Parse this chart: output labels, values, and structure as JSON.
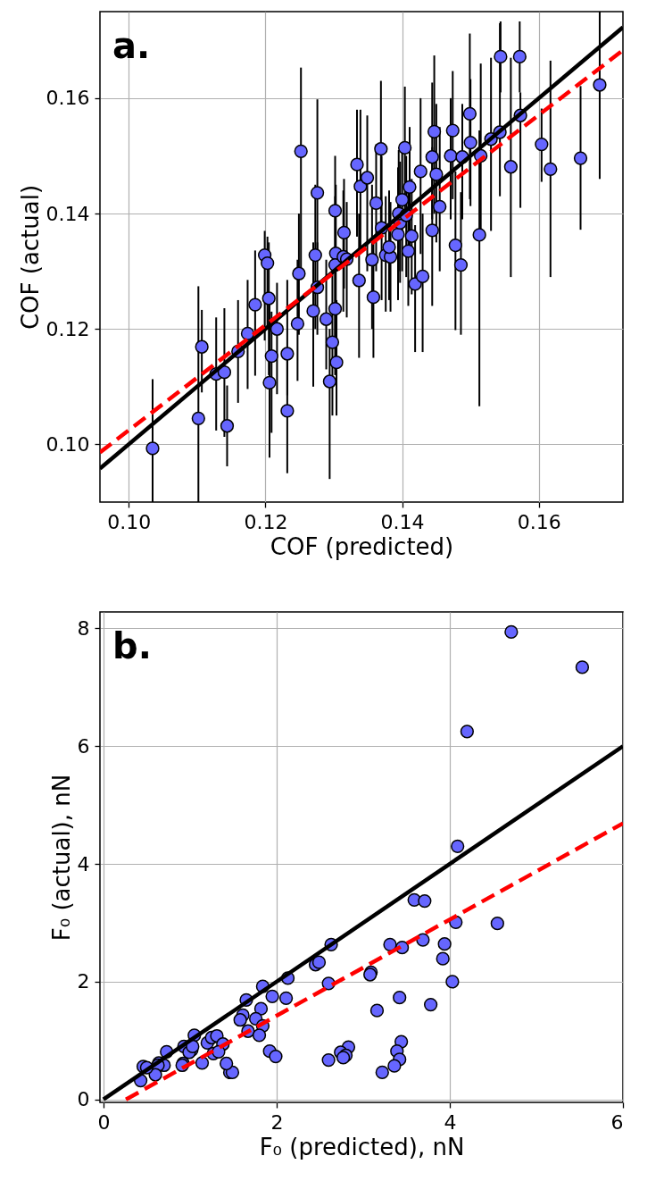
{
  "chart_data": [
    {
      "type": "scatter",
      "xlabel": "COF (predicted)",
      "ylabel": "COF (actual)",
      "annotations": [
        "a."
      ],
      "xlim": [
        0.0958,
        0.1723
      ],
      "ylim": [
        0.09,
        0.175
      ],
      "xticks": [
        {
          "value": 0.1,
          "label": "0.10"
        },
        {
          "value": 0.12,
          "label": "0.12"
        },
        {
          "value": 0.14,
          "label": "0.14"
        },
        {
          "value": 0.16,
          "label": "0.16"
        }
      ],
      "yticks": [
        {
          "value": 0.1,
          "label": "0.10"
        },
        {
          "value": 0.12,
          "label": "0.12"
        },
        {
          "value": 0.14,
          "label": "0.14"
        },
        {
          "value": 0.16,
          "label": "0.16"
        }
      ],
      "grid": true,
      "series": [
        {
          "marker": "circle",
          "color": "#6666ff",
          "x": [
            0.1035,
            0.1102,
            0.1144,
            0.1107,
            0.1128,
            0.114,
            0.116,
            0.1174,
            0.1185,
            0.1205,
            0.1209,
            0.1206,
            0.1217,
            0.1232,
            0.1232,
            0.1247,
            0.1249,
            0.1199,
            0.1203,
            0.1252,
            0.1276,
            0.1276,
            0.127,
            0.1273,
            0.1289,
            0.1298,
            0.1294,
            0.1304,
            0.1302,
            0.1302,
            0.1303,
            0.1302,
            0.1314,
            0.1315,
            0.1319,
            0.1334,
            0.1339,
            0.1349,
            0.1337,
            0.1356,
            0.1358,
            0.1362,
            0.1369,
            0.137,
            0.1376,
            0.1383,
            0.1381,
            0.1394,
            0.1397,
            0.1395,
            0.14,
            0.1404,
            0.1406,
            0.1409,
            0.1411,
            0.1414,
            0.1419,
            0.1427,
            0.143,
            0.1444,
            0.1444,
            0.1447,
            0.145,
            0.1455,
            0.1471,
            0.1474,
            0.1478,
            0.1486,
            0.1488,
            0.1499,
            0.15,
            0.1513,
            0.1515,
            0.153,
            0.1543,
            0.1544,
            0.1559,
            0.1572,
            0.1573,
            0.1604,
            0.1617,
            0.1661,
            0.1689
          ],
          "values": [
            0.0993,
            0.1045,
            0.1032,
            0.1169,
            0.1122,
            0.1125,
            0.1161,
            0.1192,
            0.1242,
            0.1253,
            0.1153,
            0.1107,
            0.12,
            0.1157,
            0.1058,
            0.1209,
            0.1296,
            0.1328,
            0.1314,
            0.1508,
            0.1436,
            0.1272,
            0.1231,
            0.1328,
            0.1217,
            0.1177,
            0.1109,
            0.1142,
            0.1235,
            0.1405,
            0.1331,
            0.1311,
            0.1325,
            0.1367,
            0.1321,
            0.1485,
            0.1447,
            0.1462,
            0.1284,
            0.132,
            0.1255,
            0.1418,
            0.1512,
            0.1375,
            0.1328,
            0.1325,
            0.1342,
            0.1364,
            0.1384,
            0.14,
            0.1424,
            0.1514,
            0.1397,
            0.1335,
            0.1446,
            0.1361,
            0.1278,
            0.1473,
            0.1291,
            0.1371,
            0.1498,
            0.1542,
            0.1468,
            0.1412,
            0.15,
            0.1544,
            0.1345,
            0.1311,
            0.1498,
            0.1573,
            0.1523,
            0.1363,
            0.15,
            0.1529,
            0.1541,
            0.1672,
            0.1481,
            0.1672,
            0.157,
            0.152,
            0.1477,
            0.1496,
            0.1623
          ],
          "errors": [
            [
              0.09,
              0.1113
            ],
            [
              0.09,
              0.1274
            ],
            [
              0.0962,
              0.1102
            ],
            [
              0.109,
              0.1233
            ],
            [
              0.1024,
              0.122
            ],
            [
              0.1013,
              0.1236
            ],
            [
              0.1072,
              0.125
            ],
            [
              0.1096,
              0.1285
            ],
            [
              0.1119,
              0.1336
            ],
            [
              0.112,
              0.135
            ],
            [
              0.102,
              0.123
            ],
            [
              0.0977,
              0.1245
            ],
            [
              0.1087,
              0.128
            ],
            [
              0.1085,
              0.1285
            ],
            [
              0.095,
              0.115
            ],
            [
              0.111,
              0.132
            ],
            [
              0.119,
              0.14
            ],
            [
              0.118,
              0.137
            ],
            [
              0.12,
              0.136
            ],
            [
              0.129,
              0.1653
            ],
            [
              0.132,
              0.1598
            ],
            [
              0.119,
              0.135
            ],
            [
              0.11,
              0.135
            ],
            [
              0.12,
              0.145
            ],
            [
              0.113,
              0.132
            ],
            [
              0.105,
              0.13
            ],
            [
              0.094,
              0.12
            ],
            [
              0.105,
              0.125
            ],
            [
              0.112,
              0.134
            ],
            [
              0.13,
              0.15
            ],
            [
              0.12,
              0.145
            ],
            [
              0.118,
              0.143
            ],
            [
              0.123,
              0.144
            ],
            [
              0.127,
              0.146
            ],
            [
              0.122,
              0.142
            ],
            [
              0.136,
              0.158
            ],
            [
              0.133,
              0.158
            ],
            [
              0.13,
              0.157
            ],
            [
              0.115,
              0.14
            ],
            [
              0.12,
              0.145
            ],
            [
              0.115,
              0.135
            ],
            [
              0.13,
              0.152
            ],
            [
              0.138,
              0.163
            ],
            [
              0.125,
              0.15
            ],
            [
              0.123,
              0.143
            ],
            [
              0.123,
              0.142
            ],
            [
              0.125,
              0.144
            ],
            [
              0.125,
              0.148
            ],
            [
              0.128,
              0.149
            ],
            [
              0.13,
              0.151
            ],
            [
              0.13,
              0.152
            ],
            [
              0.138,
              0.162
            ],
            [
              0.129,
              0.15
            ],
            [
              0.124,
              0.145
            ],
            [
              0.133,
              0.155
            ],
            [
              0.126,
              0.146
            ],
            [
              0.116,
              0.138
            ],
            [
              0.133,
              0.16
            ],
            [
              0.116,
              0.14
            ],
            [
              0.124,
              0.1515
            ],
            [
              0.139,
              0.1627
            ],
            [
              0.14,
              0.1674
            ],
            [
              0.135,
              0.159
            ],
            [
              0.13,
              0.155
            ],
            [
              0.139,
              0.16
            ],
            [
              0.1425,
              0.1647
            ],
            [
              0.1198,
              0.1473
            ],
            [
              0.119,
              0.1437
            ],
            [
              0.139,
              0.159
            ],
            [
              0.1425,
              0.1712
            ],
            [
              0.1413,
              0.1633
            ],
            [
              0.1066,
              0.1544
            ],
            [
              0.1366,
              0.166
            ],
            [
              0.137,
              0.167
            ],
            [
              0.143,
              0.173
            ],
            [
              0.161,
              0.1733
            ],
            [
              0.129,
              0.167
            ],
            [
              0.161,
              0.1733
            ],
            [
              0.141,
              0.161
            ],
            [
              0.1455,
              0.1582
            ],
            [
              0.129,
              0.1665
            ],
            [
              0.1372,
              0.1621
            ],
            [
              0.146,
              0.175
            ]
          ]
        },
        {
          "type": "line",
          "color": "#000000",
          "line_style": "solid",
          "x": [
            0.0958,
            0.1723
          ],
          "values": [
            0.0958,
            0.1723
          ]
        },
        {
          "type": "line",
          "color": "#ff0000",
          "line_style": "dashed",
          "x": [
            0.0958,
            0.1723
          ],
          "values": [
            0.0986,
            0.1683
          ]
        }
      ]
    },
    {
      "type": "scatter",
      "xlabel": "F₀ (predicted), nN",
      "ylabel": "F₀ (actual), nN",
      "annotations": [
        "b."
      ],
      "xlim": [
        -0.04,
        6.0
      ],
      "ylim": [
        -0.05,
        8.28
      ],
      "xticks": [
        0,
        2,
        4,
        6
      ],
      "yticks": [
        0,
        2,
        4,
        6,
        8
      ],
      "grid": true,
      "series": [
        {
          "marker": "circle",
          "color": "#6666ff",
          "x": [
            4.71,
            5.53,
            4.2,
            4.09,
            3.59,
            3.71,
            4.07,
            4.55,
            2.63,
            3.31,
            3.45,
            3.69,
            3.94,
            3.92,
            4.03,
            2.45,
            2.49,
            3.09,
            3.08,
            2.13,
            2.6,
            3.42,
            3.78,
            3.16,
            1.84,
            1.95,
            2.11,
            1.65,
            1.82,
            1.61,
            1.58,
            1.76,
            1.84,
            1.67,
            1.8,
            1.92,
            1.99,
            3.44,
            3.39,
            3.42,
            3.36,
            3.22,
            2.83,
            2.74,
            2.8,
            2.77,
            2.6,
            1.46,
            1.49,
            1.42,
            1.05,
            1.2,
            1.25,
            1.31,
            1.38,
            1.27,
            1.33,
            1.14,
            0.93,
            1.02,
            0.99,
            1.03,
            0.92,
            0.91,
            0.73,
            0.64,
            0.7,
            0.63,
            0.6,
            0.46,
            0.5,
            0.43
          ],
          "values": [
            7.94,
            7.34,
            6.25,
            4.3,
            3.39,
            3.37,
            3.01,
            2.99,
            2.63,
            2.63,
            2.58,
            2.71,
            2.64,
            2.39,
            2.0,
            2.29,
            2.33,
            2.16,
            2.12,
            2.06,
            1.97,
            1.73,
            1.61,
            1.51,
            1.92,
            1.75,
            1.72,
            1.69,
            1.54,
            1.43,
            1.35,
            1.37,
            1.25,
            1.16,
            1.09,
            0.82,
            0.73,
            0.98,
            0.82,
            0.68,
            0.57,
            0.46,
            0.89,
            0.8,
            0.75,
            0.71,
            0.67,
            0.46,
            0.46,
            0.61,
            1.09,
            0.96,
            1.05,
            1.08,
            0.94,
            0.78,
            0.81,
            0.62,
            0.9,
            0.84,
            0.8,
            0.9,
            0.61,
            0.58,
            0.81,
            0.62,
            0.58,
            0.58,
            0.42,
            0.56,
            0.54,
            0.32
          ]
        },
        {
          "type": "line",
          "color": "#000000",
          "line_style": "solid",
          "x": [
            0,
            6.0
          ],
          "values": [
            0,
            6.0
          ]
        },
        {
          "type": "line",
          "color": "#ff0000",
          "line_style": "dashed",
          "x": [
            0.26,
            6.0
          ],
          "values": [
            0,
            4.69
          ]
        }
      ]
    }
  ]
}
